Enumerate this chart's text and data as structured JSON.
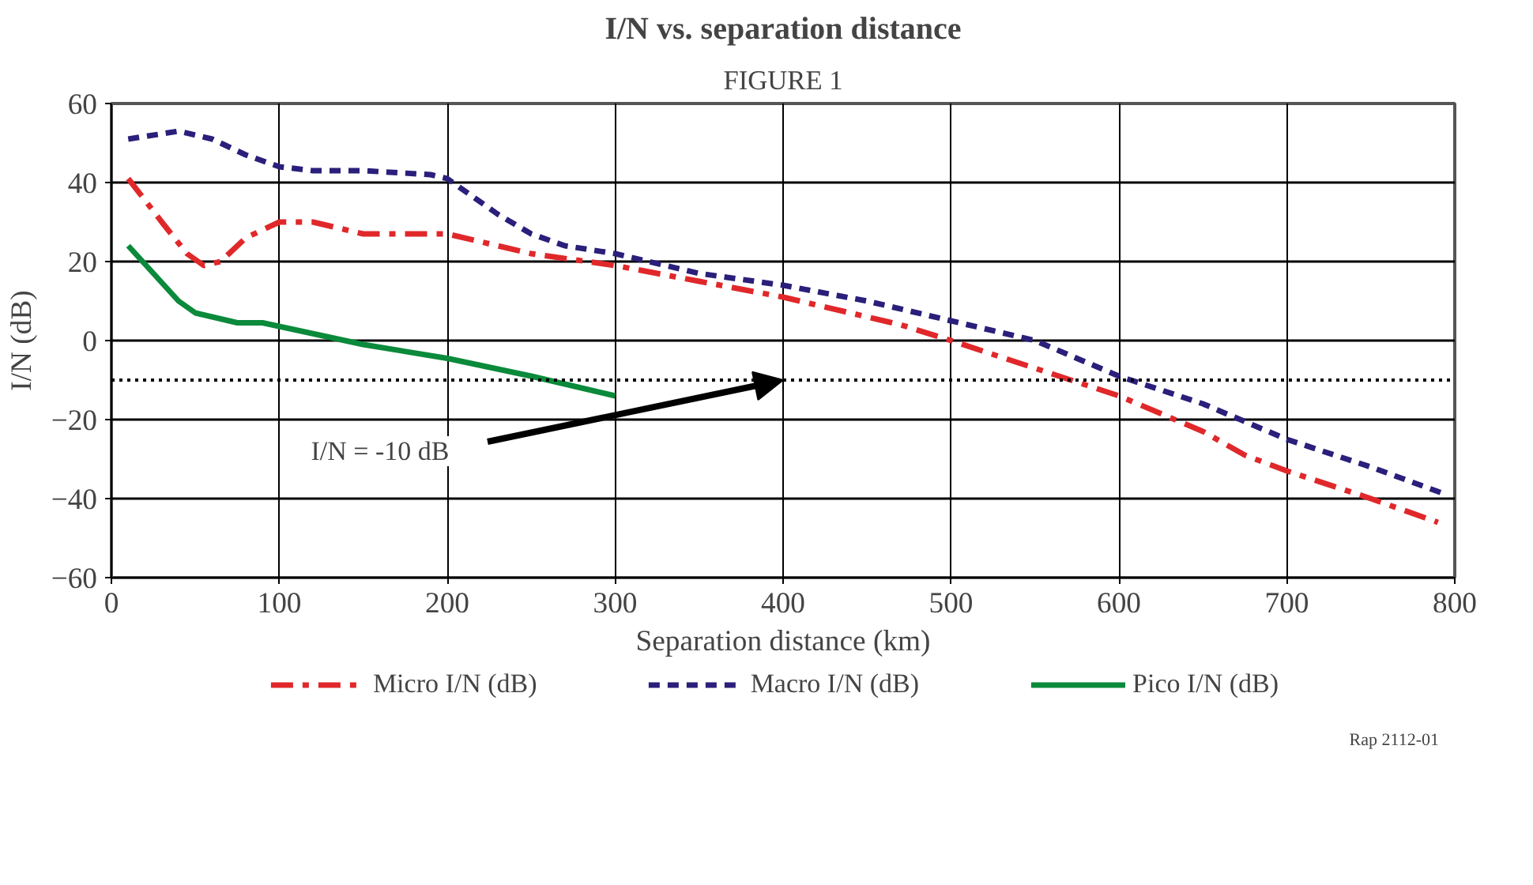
{
  "chart_data": {
    "type": "line",
    "title": "FIGURE 1",
    "subtitle": "I/N vs. separation distance",
    "xlabel": "Separation distance (km)",
    "ylabel": "I/N (dB)",
    "xlim": [
      0,
      800
    ],
    "xticks": [
      0,
      100,
      200,
      300,
      400,
      500,
      600,
      700,
      800
    ],
    "ylim": [
      -60,
      60
    ],
    "yticks": [
      -60,
      -40,
      -20,
      0,
      20,
      40,
      60
    ],
    "grid": true,
    "legend": "bottom",
    "series": [
      {
        "name": "Micro I/N (dB)",
        "color": "#e0282a",
        "line_style": "dashed",
        "x": [
          10,
          30,
          45,
          55,
          65,
          80,
          100,
          120,
          150,
          200,
          250,
          300,
          350,
          400,
          450,
          470,
          500,
          550,
          600,
          650,
          675,
          700,
          750,
          790
        ],
        "values": [
          41,
          30,
          22,
          19,
          20,
          26,
          30,
          30,
          27,
          27,
          22,
          19,
          15,
          11,
          6,
          4,
          0,
          -7,
          -14,
          -23,
          -29,
          -33,
          -40,
          -46
        ]
      },
      {
        "name": "Macro I/N (dB)",
        "color": "#2a1f7a",
        "line_style": "dashed",
        "x": [
          10,
          40,
          60,
          80,
          100,
          120,
          150,
          190,
          200,
          230,
          250,
          270,
          300,
          350,
          400,
          450,
          500,
          550,
          600,
          650,
          700,
          750,
          795
        ],
        "values": [
          51,
          53,
          51,
          47,
          44,
          43,
          43,
          42,
          41,
          32,
          27,
          24,
          22,
          17,
          14,
          10,
          5,
          0,
          -9,
          -16,
          -25,
          -32,
          -39
        ]
      },
      {
        "name": "Pico I/N (dB)",
        "color": "#0a8a3a",
        "line_style": "solid",
        "x": [
          10,
          40,
          50,
          75,
          90,
          150,
          200,
          250,
          300
        ],
        "values": [
          24,
          10,
          7,
          4.5,
          4.5,
          -1,
          -4.5,
          -9,
          -14
        ]
      }
    ],
    "ref_lines": [
      {
        "axis": "y",
        "value": -10,
        "color": "#000000",
        "line_style": "dotted"
      }
    ],
    "annotations": [
      "I/N = -10 dB",
      "Rap 2112-01"
    ]
  }
}
